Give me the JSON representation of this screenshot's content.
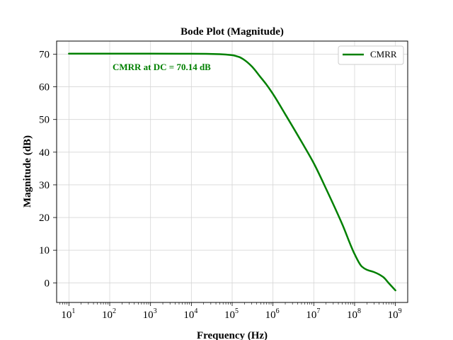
{
  "chart_data": {
    "type": "line",
    "title": "Bode Plot (Magnitude)",
    "xlabel": "Frequency (Hz)",
    "ylabel": "Magnitude (dB)",
    "x_scale": "log",
    "xlim": [
      5,
      2000000000
    ],
    "ylim": [
      -6,
      74
    ],
    "grid": true,
    "legend_position": "top-right",
    "x_tick_labels": [
      {
        "base": "10",
        "exp": "1",
        "value": 10
      },
      {
        "base": "10",
        "exp": "2",
        "value": 100
      },
      {
        "base": "10",
        "exp": "3",
        "value": 1000
      },
      {
        "base": "10",
        "exp": "4",
        "value": 10000
      },
      {
        "base": "10",
        "exp": "5",
        "value": 100000
      },
      {
        "base": "10",
        "exp": "6",
        "value": 1000000
      },
      {
        "base": "10",
        "exp": "7",
        "value": 10000000
      },
      {
        "base": "10",
        "exp": "8",
        "value": 100000000
      },
      {
        "base": "10",
        "exp": "9",
        "value": 1000000000
      }
    ],
    "y_ticks": [
      0,
      10,
      20,
      30,
      40,
      50,
      60,
      70
    ],
    "series": [
      {
        "name": "CMRR",
        "color": "#008000",
        "x": [
          10,
          100,
          1000,
          10000,
          50000,
          100000,
          150000,
          200000,
          300000,
          500000,
          700000,
          1000000,
          2000000,
          5000000,
          10000000,
          20000000,
          50000000,
          100000000,
          150000000,
          200000000,
          300000000,
          500000000,
          700000000,
          1000000000
        ],
        "y": [
          70.14,
          70.14,
          70.14,
          70.12,
          70.0,
          69.7,
          69.1,
          68.2,
          66.3,
          62.9,
          60.6,
          57.8,
          51.6,
          43.2,
          36.6,
          28.8,
          17.9,
          8.8,
          5.0,
          4.0,
          3.3,
          1.8,
          -0.2,
          -2.3
        ]
      }
    ],
    "annotation": {
      "text": "CMRR at DC = 70.14 dB",
      "color": "#008000"
    }
  }
}
